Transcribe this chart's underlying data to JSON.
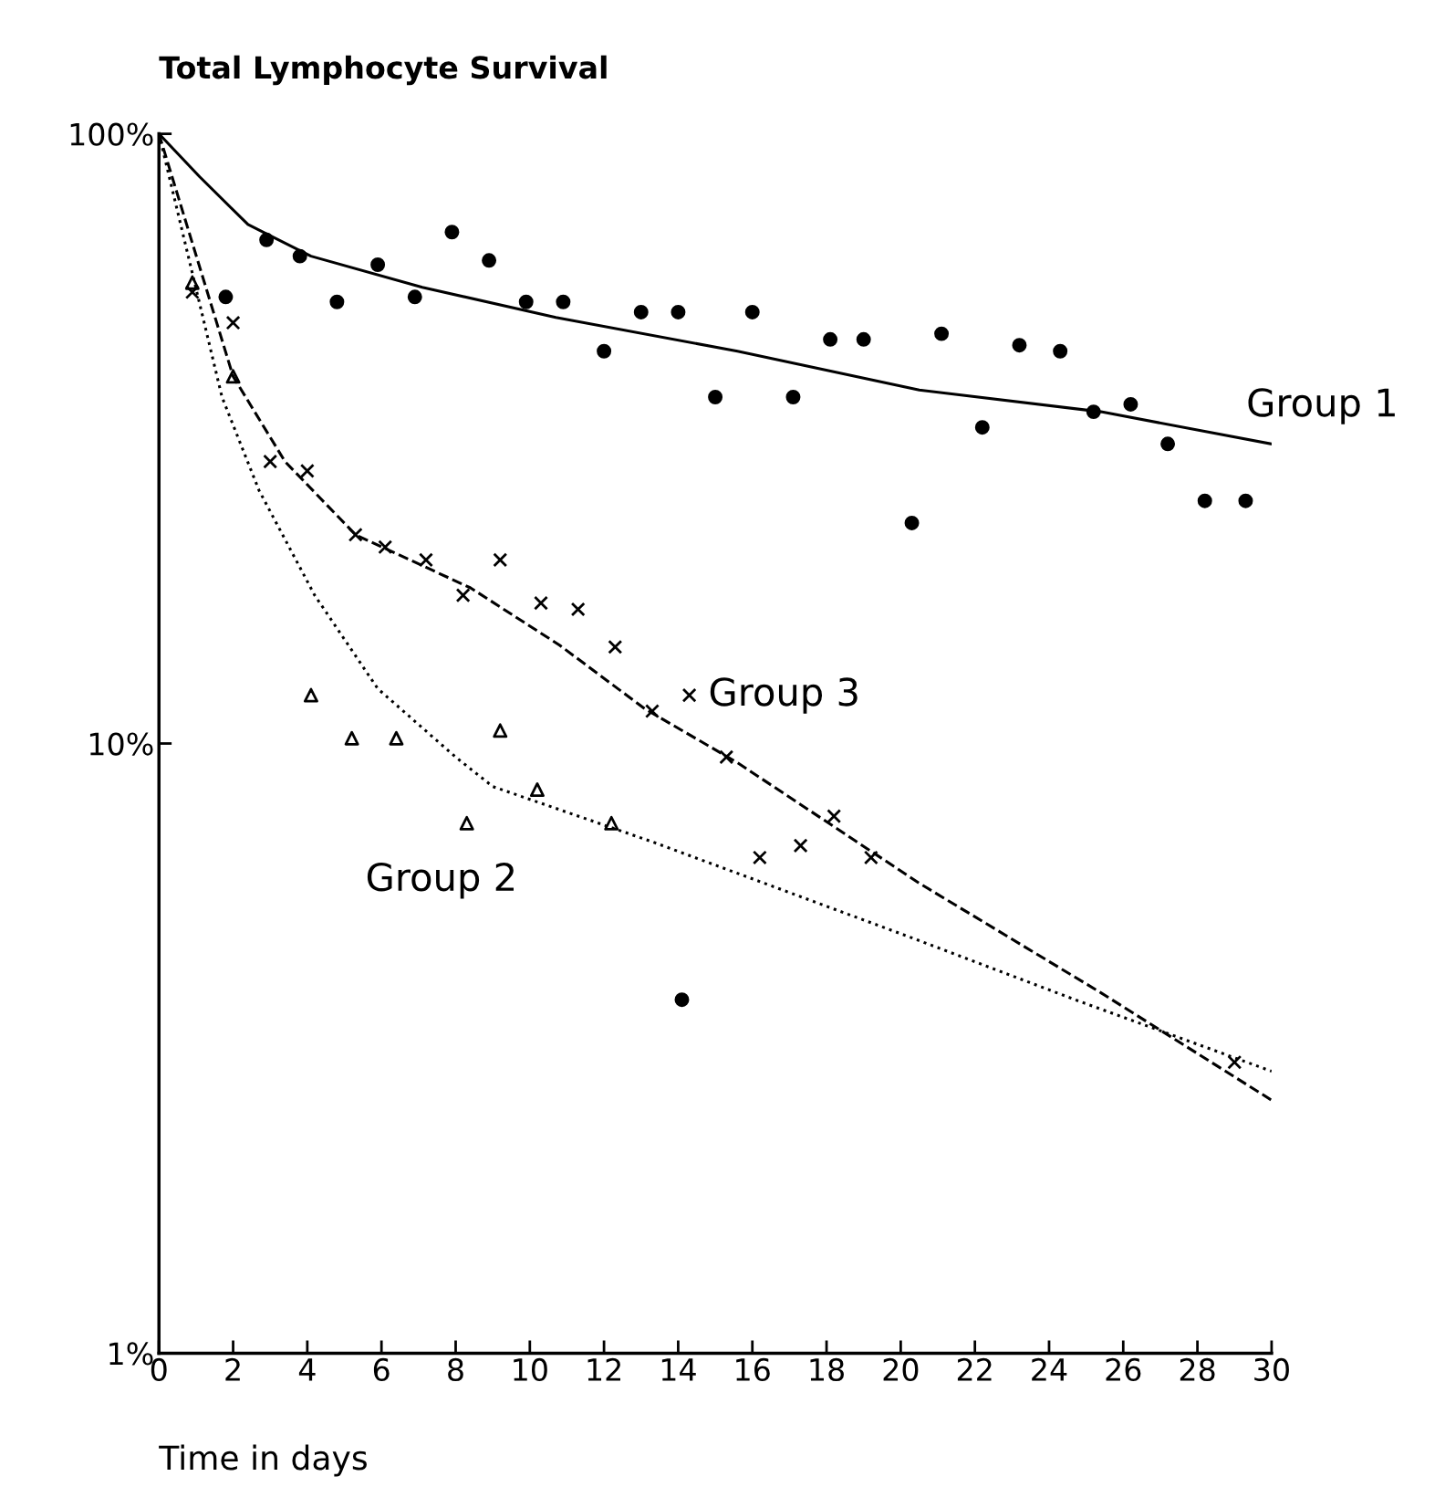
{
  "chart_data": {
    "type": "scatter",
    "ylabel": "Total Lymphocyte Survival",
    "xlabel": "Time in days",
    "log": "y",
    "xlim": [
      0,
      30
    ],
    "ylim": [
      1,
      100
    ],
    "xticks": [
      0,
      2,
      4,
      6,
      8,
      10,
      12,
      14,
      16,
      18,
      20,
      22,
      24,
      26,
      28,
      30
    ],
    "yticks": [
      {
        "value": 1,
        "label": "1%"
      },
      {
        "value": 10,
        "label": "10%"
      },
      {
        "value": 100,
        "label": "100%"
      }
    ],
    "grid": false,
    "series": [
      {
        "marker": "circle",
        "color": "#000000",
        "x": [
          1.8,
          2.9,
          3.8,
          4.8,
          5.9,
          6.9,
          7.9,
          8.9,
          9.9,
          10.9,
          12.0,
          13.0,
          14.0,
          14.1,
          15.0,
          16.0,
          17.1,
          18.1,
          19.0,
          20.3,
          21.1,
          22.2,
          23.2,
          24.3,
          25.2,
          26.2,
          27.2,
          28.2,
          29.3
        ],
        "values": [
          54,
          67,
          63,
          53,
          61,
          54,
          69,
          62,
          53,
          53,
          44,
          51,
          51,
          3.8,
          37,
          51,
          37,
          46,
          46,
          23,
          47,
          33,
          45,
          44,
          35,
          36,
          31,
          25,
          25
        ]
      },
      {
        "type": "line",
        "line_style": "solid",
        "color": "#000000",
        "x": [
          0,
          1.1,
          2.4,
          4.1,
          7.1,
          10.7,
          15.6,
          20.5,
          25.4,
          30
        ],
        "values": [
          100,
          85,
          71,
          63,
          56,
          50,
          44,
          38,
          35,
          31
        ]
      },
      {
        "marker": "cross",
        "color": "#000000",
        "x": [
          0.9,
          2.0,
          3.0,
          4.0,
          5.3,
          6.1,
          7.2,
          8.2,
          9.2,
          10.3,
          11.3,
          12.3,
          13.3,
          14.3,
          15.3,
          16.2,
          17.3,
          18.2,
          19.2,
          29.0
        ],
        "values": [
          55,
          49,
          29,
          28,
          22,
          21,
          20,
          17.5,
          20,
          17,
          16.6,
          14.4,
          11.3,
          12,
          9.5,
          6.5,
          6.8,
          7.6,
          6.5,
          3.0
        ]
      },
      {
        "type": "line",
        "line_style": "dashed",
        "color": "#000000",
        "x": [
          0,
          2.0,
          3.4,
          5.3,
          8.4,
          10.8,
          13.1,
          15.6,
          20.5,
          25.4,
          30
        ],
        "values": [
          100,
          40,
          29,
          22,
          18,
          14.5,
          11.4,
          9.3,
          5.9,
          3.9,
          2.6
        ]
      },
      {
        "marker": "triangle",
        "color": "#000000",
        "x": [
          0.9,
          2.0,
          4.1,
          5.2,
          6.4,
          8.3,
          9.2,
          10.2,
          12.2
        ],
        "values": [
          57,
          40,
          12,
          10.2,
          10.2,
          7.4,
          10.5,
          8.4,
          7.4
        ]
      },
      {
        "type": "line",
        "line_style": "dotted",
        "color": "#000000",
        "x": [
          0,
          1.7,
          2.7,
          4.2,
          5.9,
          8.0,
          9.0,
          13.3,
          20.3,
          24.7,
          30
        ],
        "values": [
          100,
          37,
          26,
          17.5,
          12.3,
          9.5,
          8.5,
          6.9,
          4.8,
          3.8,
          2.9
        ]
      }
    ],
    "annotations": [
      {
        "text": "Group 1",
        "x": 30,
        "y": 31
      },
      {
        "text": "Group 3",
        "x": 14.3,
        "y": 12
      },
      {
        "text": "Group 2",
        "x": 8.3,
        "y": 7.4
      }
    ]
  }
}
